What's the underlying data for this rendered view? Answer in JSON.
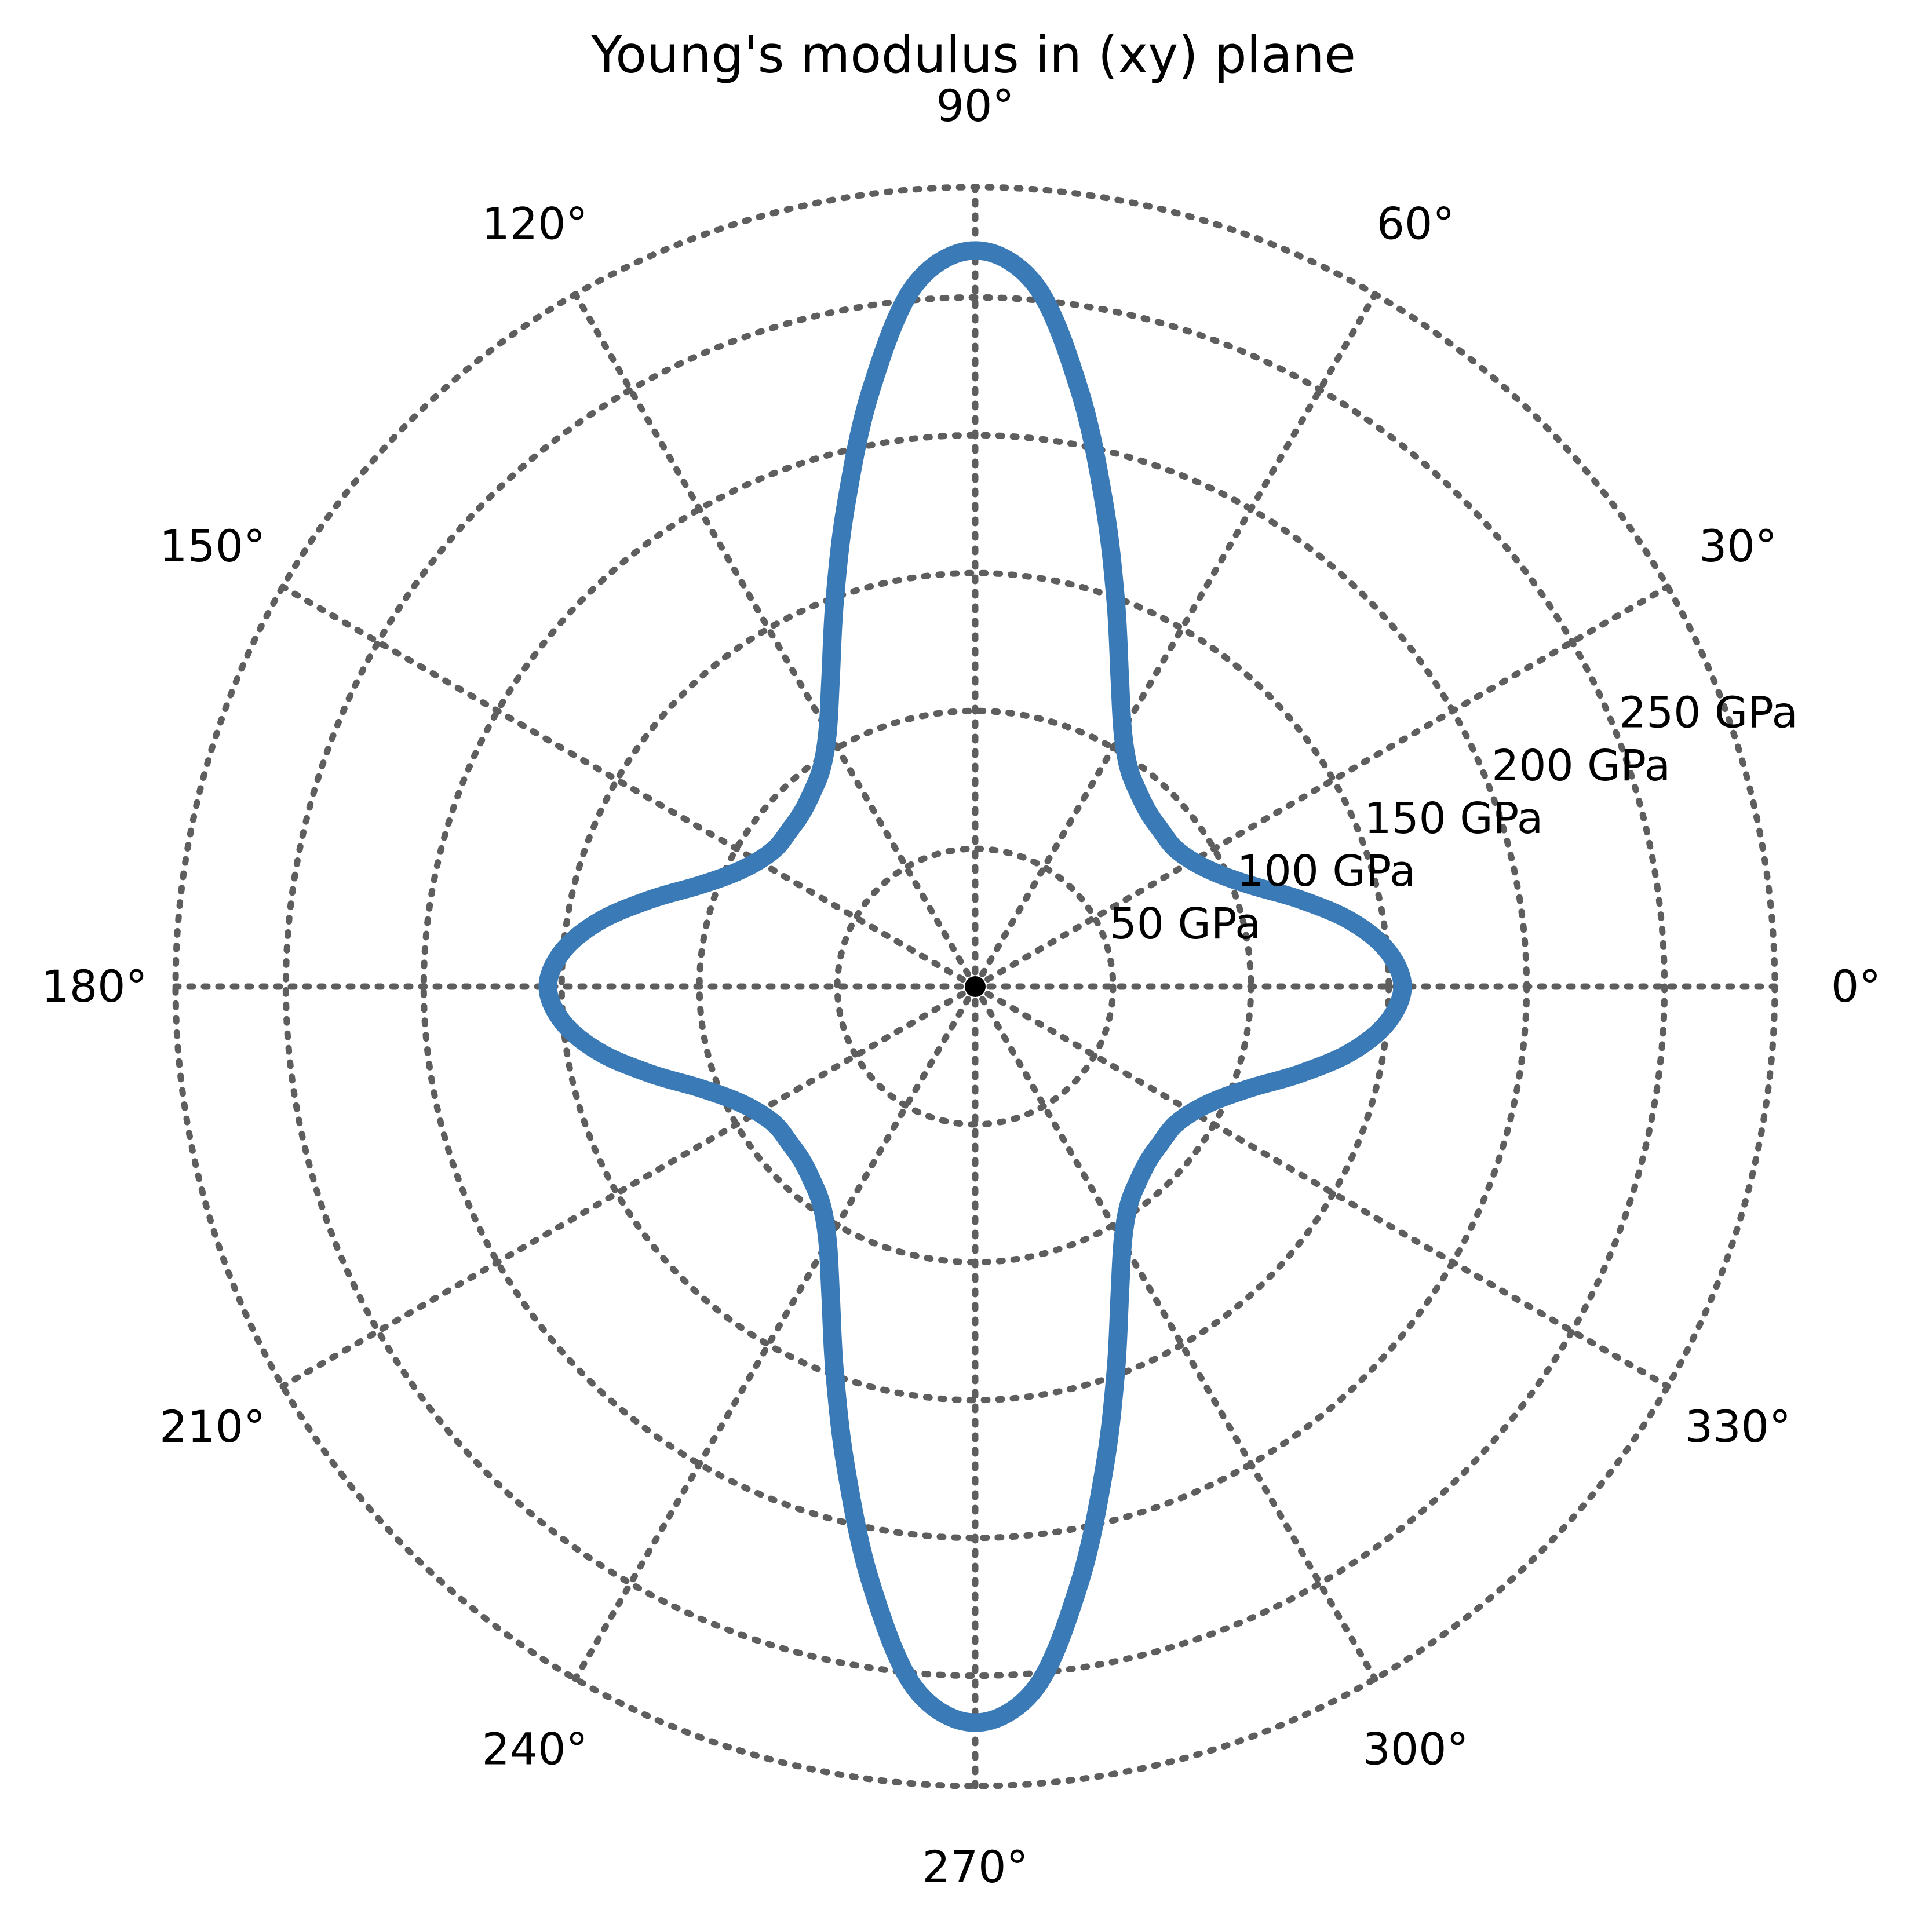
{
  "chart_data": {
    "type": "polar-line",
    "title": "Young's modulus in (xy) plane",
    "angular_ticks": [
      "0°",
      "30°",
      "60°",
      "90°",
      "120°",
      "150°",
      "180°",
      "210°",
      "240°",
      "270°",
      "300°",
      "330°"
    ],
    "angular_tick_values_deg": [
      0,
      30,
      60,
      90,
      120,
      150,
      180,
      210,
      240,
      270,
      300,
      330
    ],
    "radial_ticks": [
      "50 GPa",
      "100 GPa",
      "150 GPa",
      "200 GPa",
      "250 GPa"
    ],
    "radial_tick_values": [
      50,
      100,
      150,
      200,
      250
    ],
    "r_max": 290,
    "radial_label_angle_deg": 22.5,
    "grid": true,
    "grid_style": "dotted",
    "series": [
      {
        "color": "#3a7ab6",
        "theta_deg": [
          0,
          5,
          10,
          15,
          20,
          25,
          30,
          35,
          40,
          45,
          50,
          55,
          60,
          65,
          70,
          75,
          80,
          85,
          90,
          95,
          100,
          105,
          110,
          115,
          120,
          125,
          130,
          135,
          140,
          145,
          150,
          155,
          160,
          165,
          170,
          175,
          180,
          185,
          190,
          195,
          200,
          205,
          210,
          215,
          220,
          225,
          230,
          235,
          240,
          245,
          250,
          255,
          260,
          265,
          270,
          275,
          280,
          285,
          290,
          295,
          300,
          305,
          310,
          315,
          320,
          325,
          330,
          335,
          340,
          345,
          350,
          355
        ],
        "r": [
          155,
          150,
          138,
          122,
          107,
          97,
          91,
          88,
          88,
          89,
          92,
          97,
          107,
          124,
          149,
          181,
          219,
          255,
          267,
          255,
          219,
          181,
          149,
          124,
          107,
          97,
          92,
          89,
          88,
          88,
          91,
          97,
          107,
          122,
          138,
          150,
          155,
          150,
          138,
          122,
          107,
          97,
          91,
          88,
          88,
          89,
          92,
          97,
          107,
          124,
          149,
          181,
          219,
          255,
          267,
          255,
          219,
          181,
          149,
          124,
          107,
          97,
          92,
          89,
          88,
          88,
          91,
          97,
          107,
          122,
          138,
          150
        ]
      }
    ]
  },
  "colors": {
    "series": "#3a7ab6",
    "grid": "#5e5e5e",
    "text": "#000000"
  }
}
